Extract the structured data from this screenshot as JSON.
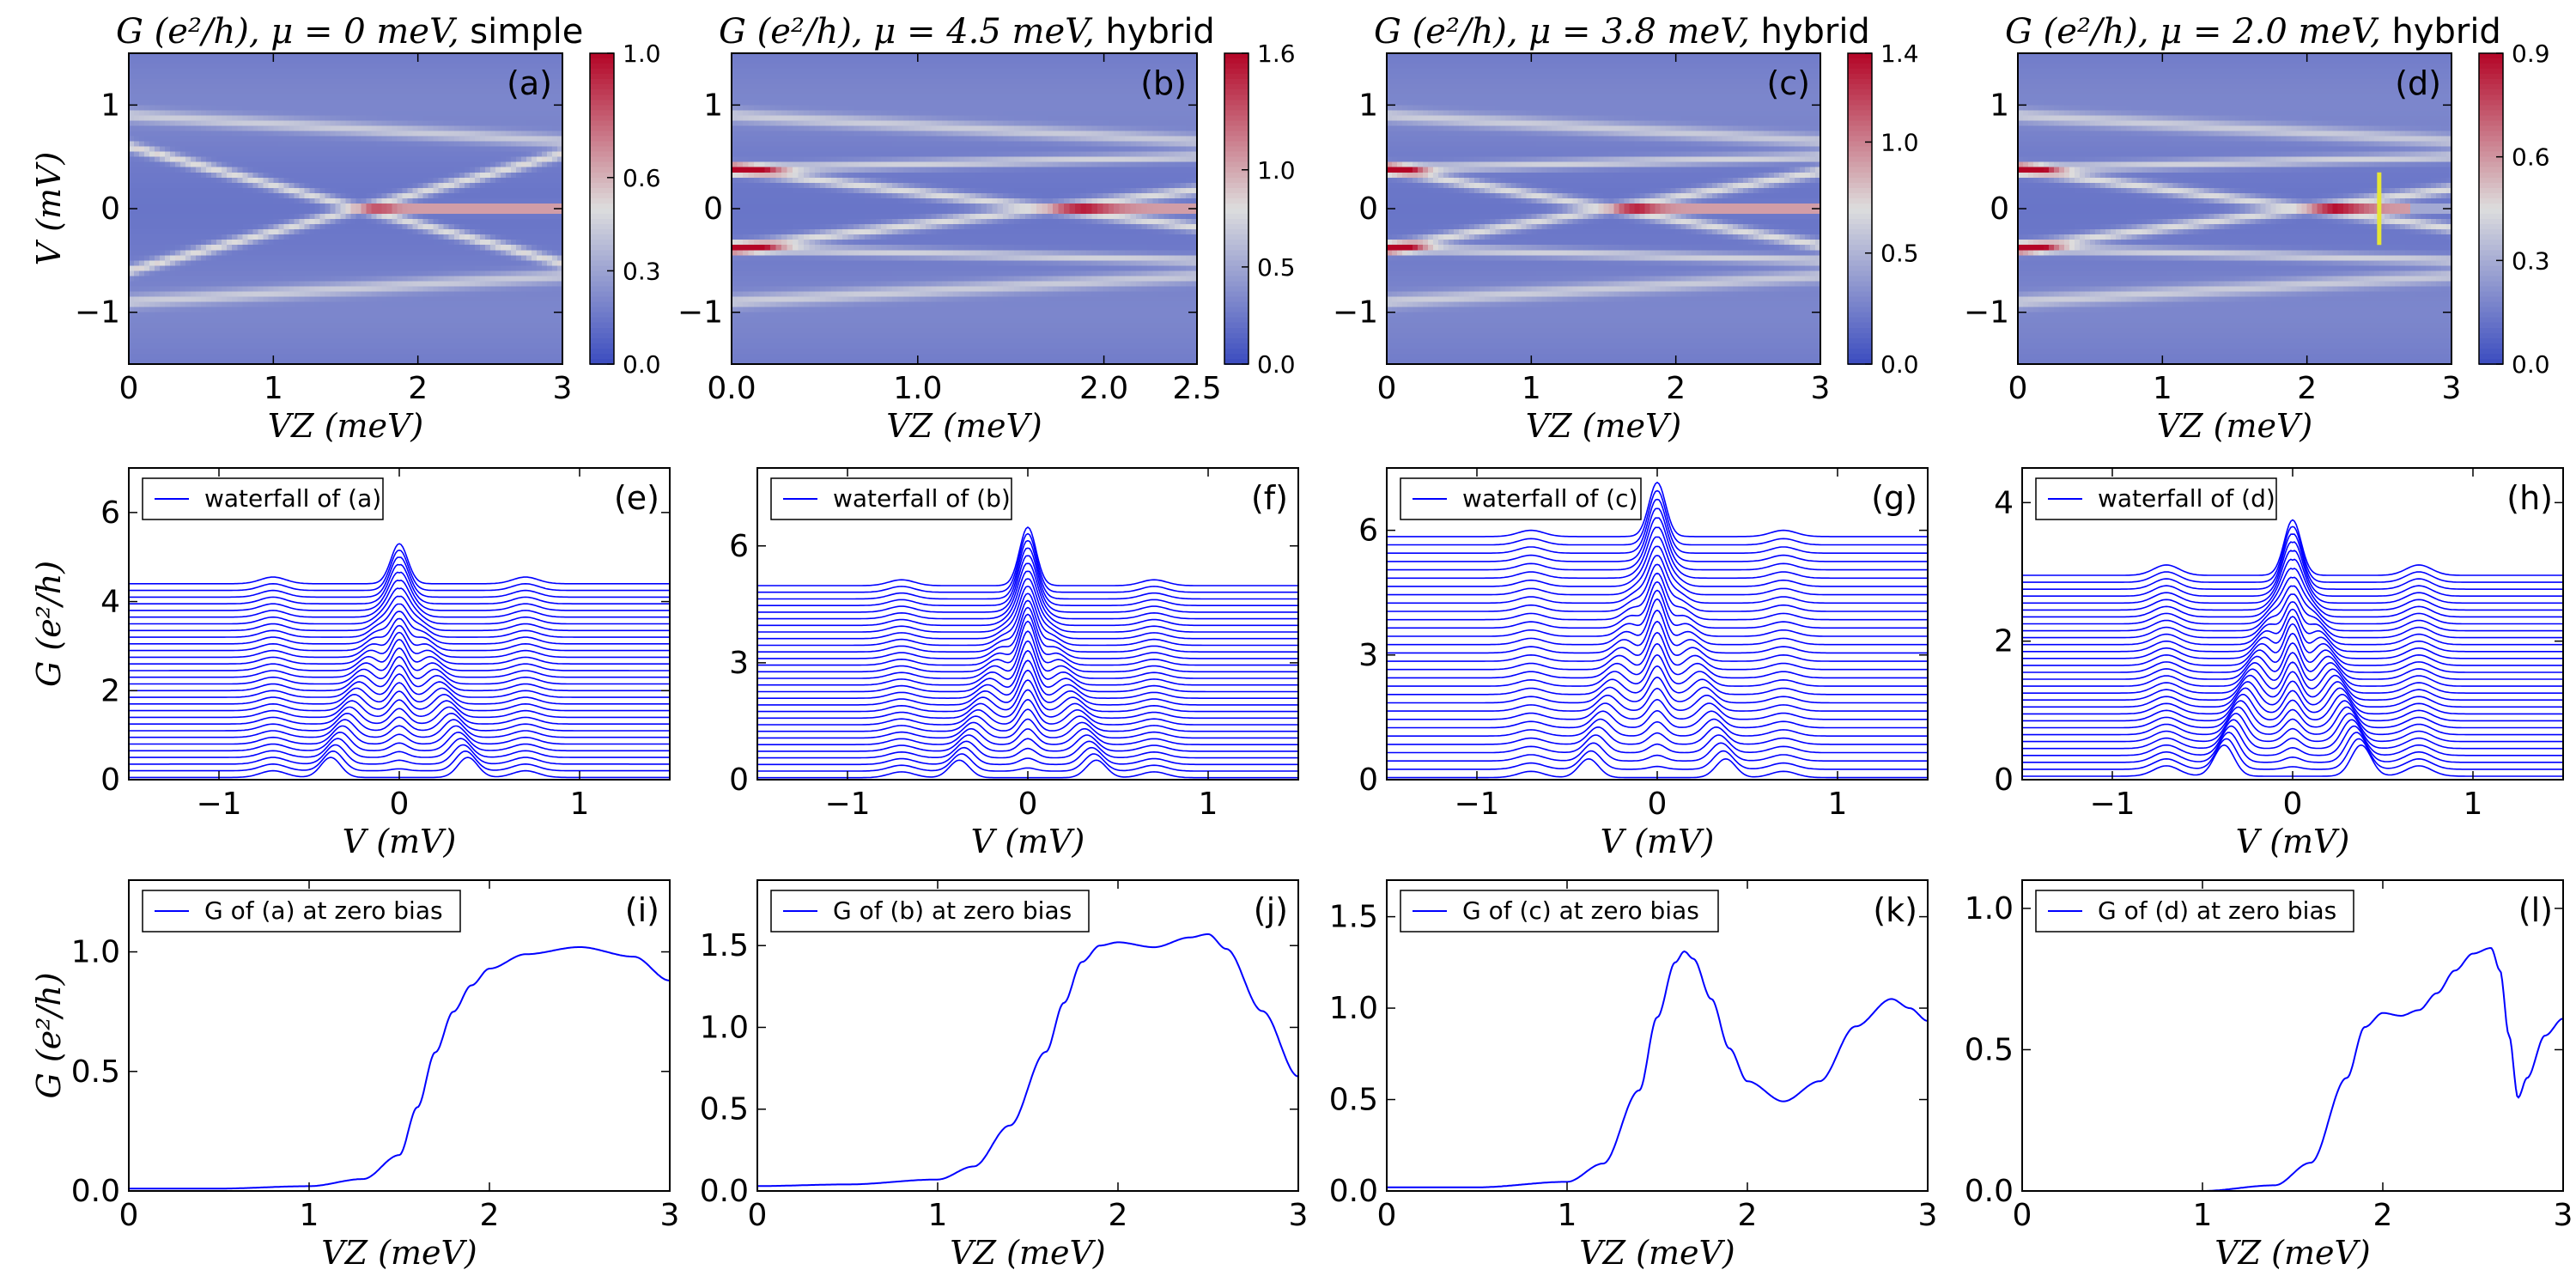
{
  "figure": {
    "colorbar_ticks": [
      [
        "0.0",
        "0.3",
        "0.6",
        "1.0"
      ],
      [
        "0.0",
        "0.5",
        "1.0",
        "1.6"
      ],
      [
        "0.0",
        "0.5",
        "1.0",
        "1.4"
      ],
      [
        "0.0",
        "0.3",
        "0.6",
        "0.9"
      ]
    ],
    "colors": {
      "curve": "#0000ff",
      "cmap_low": "#3b4cc0",
      "cmap_mid": "#dddddd",
      "cmap_high": "#b40426",
      "marker": "#e6e635"
    }
  },
  "chart_data": [
    {
      "panel": "(a)",
      "type": "heatmap",
      "title_math": "G (e²/h), μ = 0 meV,",
      "title_text": "simple",
      "xlabel": "V_Z (meV)",
      "ylabel": "V (mV)",
      "xlim": [
        0,
        3
      ],
      "ylim": [
        -1.5,
        1.5
      ],
      "xticks": [
        "0",
        "1",
        "2",
        "3"
      ],
      "yticks": [
        "−1",
        "0",
        "1"
      ],
      "colorbar": {
        "min": 0.0,
        "max": 1.0
      },
      "zero_bias_peak_start_vz": 1.6
    },
    {
      "panel": "(b)",
      "type": "heatmap",
      "title_math": "G (e²/h), μ = 4.5 meV,",
      "title_text": "hybrid",
      "xlabel": "V_Z (meV)",
      "ylabel": "",
      "xlim": [
        0,
        2.5
      ],
      "ylim": [
        -1.5,
        1.5
      ],
      "xticks": [
        "0.0",
        "1.0",
        "2.0",
        "2.5"
      ],
      "yticks": [
        "−1",
        "0",
        "1"
      ],
      "colorbar": {
        "min": 0.0,
        "max": 1.6
      },
      "zero_bias_peak_start_vz": 1.7
    },
    {
      "panel": "(c)",
      "type": "heatmap",
      "title_math": "G (e²/h), μ = 3.8 meV,",
      "title_text": "hybrid",
      "xlabel": "V_Z (meV)",
      "ylabel": "",
      "xlim": [
        0,
        3
      ],
      "ylim": [
        -1.5,
        1.5
      ],
      "xticks": [
        "0",
        "1",
        "2",
        "3"
      ],
      "yticks": [
        "−1",
        "0",
        "1"
      ],
      "colorbar": {
        "min": 0.0,
        "max": 1.4
      },
      "zero_bias_peak_start_vz": 1.55
    },
    {
      "panel": "(d)",
      "type": "heatmap",
      "title_math": "G (e²/h), μ = 2.0 meV,",
      "title_text": "hybrid",
      "xlabel": "V_Z (meV)",
      "ylabel": "",
      "xlim": [
        0,
        3
      ],
      "ylim": [
        -1.5,
        1.5
      ],
      "xticks": [
        "0",
        "1",
        "2",
        "3"
      ],
      "yticks": [
        "−1",
        "0",
        "1"
      ],
      "colorbar": {
        "min": 0.0,
        "max": 0.9
      },
      "zero_bias_peak_start_vz": 2.0,
      "marker_line": {
        "vz": 2.5,
        "v_from": -0.35,
        "v_to": 0.35
      }
    },
    {
      "panel": "(e)",
      "type": "line",
      "legend": "waterfall of (a)",
      "xlabel": "V (mV)",
      "ylabel": "G (e²/h)",
      "xlim": [
        -1.5,
        1.5
      ],
      "ylim": [
        0,
        7
      ],
      "xticks": [
        "−1",
        "0",
        "1"
      ],
      "yticks": [
        "0",
        "2",
        "4",
        "6"
      ],
      "n_curves": 30,
      "offset_step": 0.15,
      "center_peak_height": 0.7
    },
    {
      "panel": "(f)",
      "type": "line",
      "legend": "waterfall of (b)",
      "xlabel": "V (mV)",
      "ylabel": "",
      "xlim": [
        -1.5,
        1.5
      ],
      "ylim": [
        0,
        8
      ],
      "xticks": [
        "−1",
        "0",
        "1"
      ],
      "yticks": [
        "0",
        "3",
        "6"
      ],
      "n_curves": 30,
      "offset_step": 0.17,
      "center_peak_height": 1.3
    },
    {
      "panel": "(g)",
      "type": "line",
      "legend": "waterfall of (c)",
      "xlabel": "V (mV)",
      "ylabel": "",
      "xlim": [
        -1.5,
        1.5
      ],
      "ylim": [
        0,
        7.5
      ],
      "xticks": [
        "−1",
        "0",
        "1"
      ],
      "yticks": [
        "0",
        "3",
        "6"
      ],
      "n_curves": 30,
      "offset_step": 0.2,
      "center_peak_height": 1.1
    },
    {
      "panel": "(h)",
      "type": "line",
      "legend": "waterfall of (d)",
      "xlabel": "V (mV)",
      "ylabel": "",
      "xlim": [
        -1.5,
        1.5
      ],
      "ylim": [
        0,
        4.5
      ],
      "xticks": [
        "−1",
        "0",
        "1"
      ],
      "yticks": [
        "0",
        "2",
        "4"
      ],
      "n_curves": 30,
      "offset_step": 0.1,
      "center_peak_height": 0.6
    },
    {
      "panel": "(i)",
      "type": "line",
      "legend": "G of (a) at zero bias",
      "xlabel": "V_Z (meV)",
      "ylabel": "G (e²/h)",
      "xlim": [
        0,
        3
      ],
      "ylim": [
        0,
        1.3
      ],
      "xticks": [
        "0",
        "1",
        "2",
        "3"
      ],
      "yticks": [
        "0.0",
        "0.5",
        "1.0"
      ],
      "x": [
        0.0,
        0.5,
        1.0,
        1.3,
        1.5,
        1.6,
        1.7,
        1.8,
        1.9,
        2.0,
        2.2,
        2.5,
        2.8,
        3.0
      ],
      "y": [
        0.01,
        0.01,
        0.02,
        0.05,
        0.15,
        0.35,
        0.58,
        0.75,
        0.86,
        0.93,
        0.99,
        1.02,
        0.98,
        0.88
      ]
    },
    {
      "panel": "(j)",
      "type": "line",
      "legend": "G of (b) at zero bias",
      "xlabel": "V_Z (meV)",
      "ylabel": "",
      "xlim": [
        0,
        3
      ],
      "ylim": [
        0,
        1.9
      ],
      "xticks": [
        "0",
        "1",
        "2",
        "3"
      ],
      "yticks": [
        "0.0",
        "0.5",
        "1.0",
        "1.5"
      ],
      "x": [
        0.0,
        0.5,
        1.0,
        1.2,
        1.4,
        1.6,
        1.7,
        1.8,
        1.9,
        2.0,
        2.2,
        2.4,
        2.5,
        2.6,
        2.8,
        3.0
      ],
      "y": [
        0.03,
        0.04,
        0.07,
        0.15,
        0.4,
        0.85,
        1.15,
        1.4,
        1.5,
        1.52,
        1.49,
        1.55,
        1.57,
        1.48,
        1.1,
        0.7
      ]
    },
    {
      "panel": "(k)",
      "type": "line",
      "legend": "G of (c) at zero bias",
      "xlabel": "V_Z (meV)",
      "ylabel": "",
      "xlim": [
        0,
        3
      ],
      "ylim": [
        0,
        1.7
      ],
      "xticks": [
        "0",
        "1",
        "2",
        "3"
      ],
      "yticks": [
        "0.0",
        "0.5",
        "1.0",
        "1.5"
      ],
      "x": [
        0.0,
        0.5,
        1.0,
        1.2,
        1.4,
        1.5,
        1.6,
        1.65,
        1.7,
        1.8,
        1.9,
        2.0,
        2.2,
        2.4,
        2.6,
        2.8,
        2.9,
        3.0
      ],
      "y": [
        0.02,
        0.02,
        0.05,
        0.15,
        0.55,
        0.95,
        1.25,
        1.31,
        1.27,
        1.05,
        0.78,
        0.6,
        0.49,
        0.6,
        0.9,
        1.05,
        1.0,
        0.93
      ]
    },
    {
      "panel": "(l)",
      "type": "line",
      "legend": "G of (d) at zero bias",
      "xlabel": "V_Z (meV)",
      "ylabel": "",
      "xlim": [
        0,
        3
      ],
      "ylim": [
        0,
        1.1
      ],
      "xticks": [
        "0",
        "1",
        "2",
        "3"
      ],
      "yticks": [
        "0.0",
        "0.5",
        "1.0"
      ],
      "x": [
        0.0,
        1.0,
        1.4,
        1.6,
        1.8,
        1.9,
        2.0,
        2.1,
        2.2,
        2.3,
        2.4,
        2.5,
        2.6,
        2.65,
        2.7,
        2.75,
        2.8,
        2.9,
        3.0
      ],
      "y": [
        0.0,
        0.0,
        0.02,
        0.1,
        0.4,
        0.58,
        0.63,
        0.62,
        0.64,
        0.7,
        0.78,
        0.84,
        0.86,
        0.78,
        0.55,
        0.33,
        0.4,
        0.55,
        0.61
      ]
    }
  ]
}
